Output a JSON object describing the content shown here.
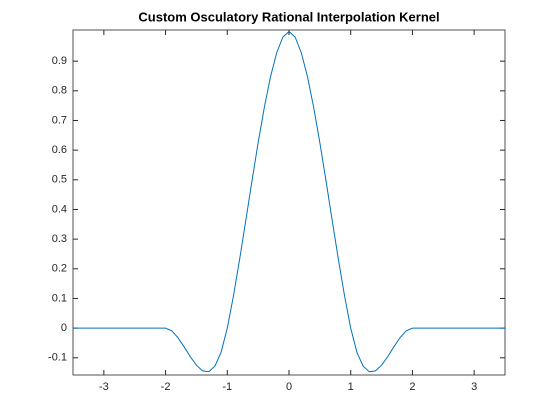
{
  "chart_data": {
    "type": "line",
    "title": "Custom Osculatory Rational Interpolation Kernel",
    "x": [
      -3.5,
      -2,
      -1.9,
      -1.8,
      -1.7,
      -1.6,
      -1.5,
      -1.4,
      -1.3,
      -1.2,
      -1.1,
      -1,
      -0.9,
      -0.8,
      -0.7,
      -0.6,
      -0.5,
      -0.4,
      -0.3,
      -0.2,
      -0.1,
      0,
      0.1,
      0.2,
      0.3,
      0.4,
      0.5,
      0.6,
      0.7,
      0.8,
      0.9,
      1,
      1.1,
      1.2,
      1.3,
      1.4,
      1.5,
      1.6,
      1.7,
      1.8,
      1.9,
      2,
      3.5
    ],
    "values": [
      0,
      0,
      -0.009,
      -0.032,
      -0.063,
      -0.096,
      -0.125,
      -0.144,
      -0.147,
      -0.128,
      -0.081,
      0,
      0.109,
      0.232,
      0.363,
      0.496,
      0.625,
      0.744,
      0.847,
      0.928,
      0.981,
      1,
      0.981,
      0.928,
      0.847,
      0.744,
      0.625,
      0.496,
      0.363,
      0.232,
      0.109,
      0,
      -0.081,
      -0.128,
      -0.147,
      -0.144,
      -0.125,
      -0.096,
      -0.063,
      -0.032,
      -0.009,
      0,
      0
    ],
    "color": "#0072bd",
    "xlim": [
      -3.5,
      3.5
    ],
    "ylim": [
      -0.158,
      1.005
    ],
    "xticks": [
      -3,
      -2,
      -1,
      0,
      1,
      2,
      3
    ],
    "yticks": [
      -0.1,
      0,
      0.1,
      0.2,
      0.3,
      0.4,
      0.5,
      0.6,
      0.7,
      0.8,
      0.9
    ]
  }
}
